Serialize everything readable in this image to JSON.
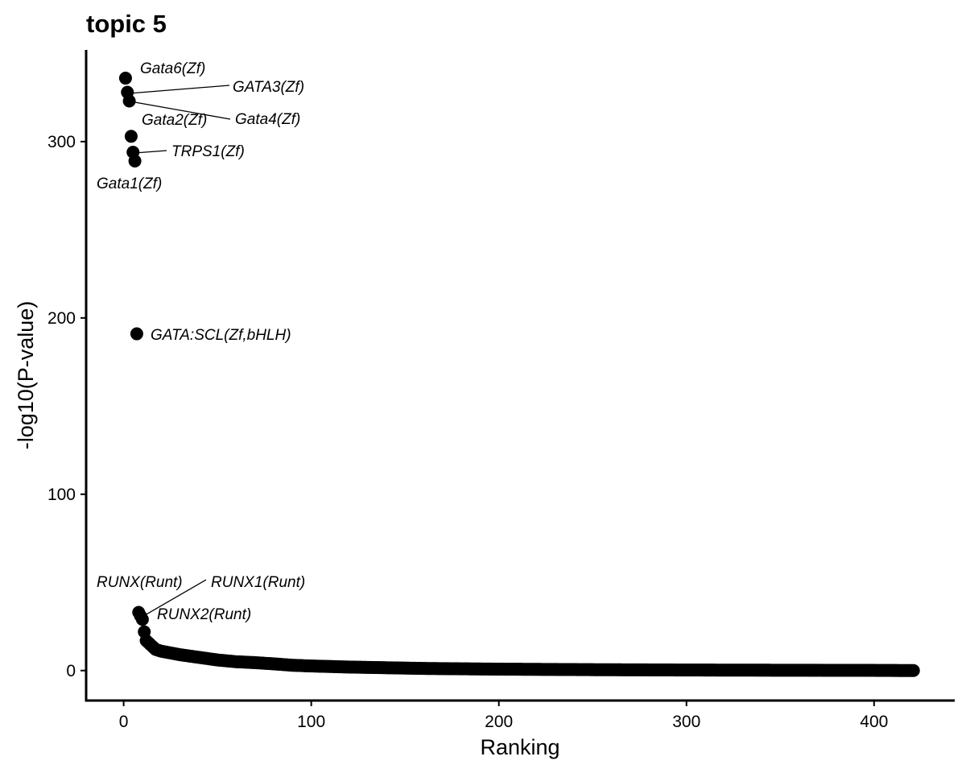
{
  "chart_data": {
    "type": "scatter",
    "title": "topic 5",
    "xlabel": "Ranking",
    "ylabel": "-log10(P-value)",
    "xlim": [
      -20,
      443
    ],
    "ylim": [
      -17,
      352
    ],
    "xticks": [
      0,
      100,
      200,
      300,
      400
    ],
    "yticks": [
      0,
      100,
      200,
      300
    ],
    "grid": false,
    "legend": "none",
    "point_color": "#000000",
    "labeled_points": [
      {
        "rank": 1,
        "value": 336,
        "label": "Gata6(Zf)"
      },
      {
        "rank": 2,
        "value": 328,
        "label": "GATA3(Zf)"
      },
      {
        "rank": 3,
        "value": 323,
        "label": "Gata4(Zf)"
      },
      {
        "rank": 4,
        "value": 303,
        "label": "Gata2(Zf)"
      },
      {
        "rank": 5,
        "value": 294,
        "label": "TRPS1(Zf)"
      },
      {
        "rank": 6,
        "value": 289,
        "label": "Gata1(Zf)"
      },
      {
        "rank": 7,
        "value": 191,
        "label": "GATA:SCL(Zf,bHLH)"
      },
      {
        "rank": 8,
        "value": 33,
        "label": "RUNX(Runt)"
      },
      {
        "rank": 9,
        "value": 31,
        "label": "RUNX1(Runt)"
      },
      {
        "rank": 10,
        "value": 29,
        "label": "RUNX2(Runt)"
      }
    ],
    "unlabeled_points": [
      {
        "rank": 11,
        "value": 22
      },
      {
        "rank": 12,
        "value": 17
      },
      {
        "rank": 13,
        "value": 16
      },
      {
        "rank": 15,
        "value": 14
      },
      {
        "rank": 17,
        "value": 12
      },
      {
        "rank": 20,
        "value": 11
      },
      {
        "rank": 25,
        "value": 10
      },
      {
        "rank": 30,
        "value": 9
      },
      {
        "rank": 40,
        "value": 7.5
      },
      {
        "rank": 50,
        "value": 6
      },
      {
        "rank": 60,
        "value": 5
      },
      {
        "rank": 70,
        "value": 4.5
      },
      {
        "rank": 80,
        "value": 3.8
      },
      {
        "rank": 90,
        "value": 3
      },
      {
        "rank": 100,
        "value": 2.6
      },
      {
        "rank": 120,
        "value": 2
      },
      {
        "rank": 140,
        "value": 1.6
      },
      {
        "rank": 160,
        "value": 1.2
      },
      {
        "rank": 180,
        "value": 1
      },
      {
        "rank": 200,
        "value": 0.8
      },
      {
        "rank": 250,
        "value": 0.5
      },
      {
        "rank": 300,
        "value": 0.3
      },
      {
        "rank": 350,
        "value": 0.2
      },
      {
        "rank": 400,
        "value": 0.1
      },
      {
        "rank": 421,
        "value": 0
      }
    ]
  }
}
